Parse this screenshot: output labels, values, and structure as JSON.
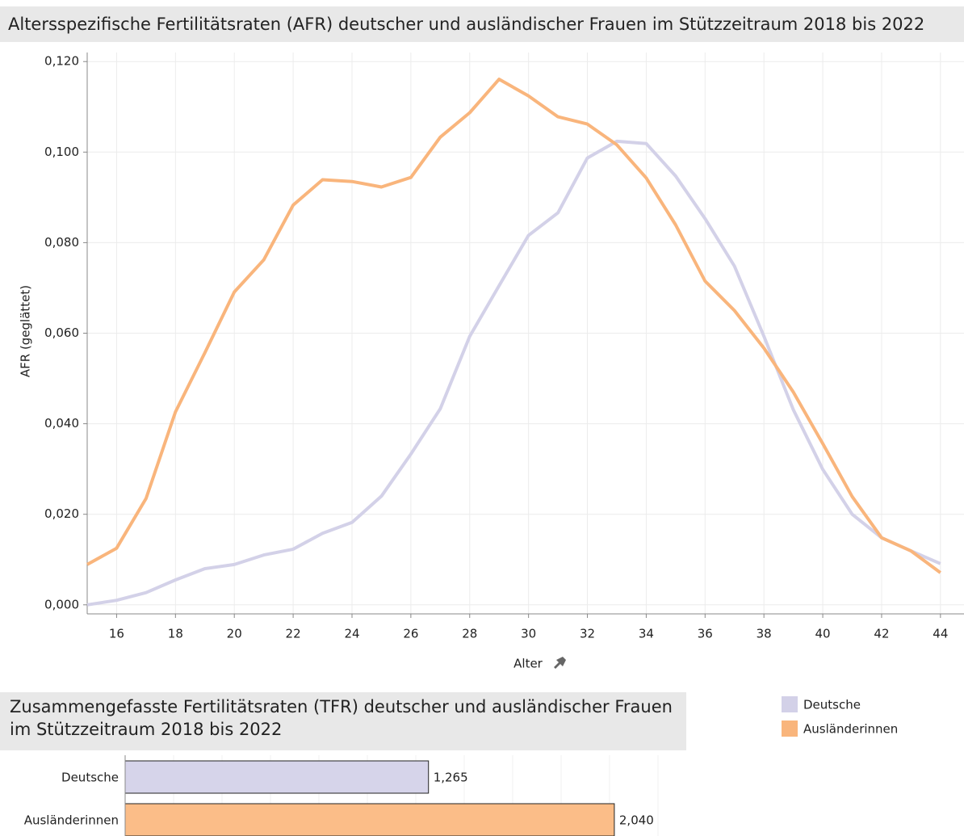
{
  "chart_data": [
    {
      "type": "line",
      "title": "Altersspezifische Fertilitätsraten (AFR) deutscher und ausländischer Frauen im Stützzeitraum 2018 bis 2022",
      "xlabel": "Alter",
      "ylabel": "AFR (geglättet)",
      "x": [
        15,
        16,
        17,
        18,
        19,
        20,
        21,
        22,
        23,
        24,
        25,
        26,
        27,
        28,
        29,
        30,
        31,
        32,
        33,
        34,
        35,
        36,
        37,
        38,
        39,
        40,
        41,
        42,
        43,
        44
      ],
      "series": [
        {
          "name": "Deutsche",
          "color": "#d3d1e8",
          "values": [
            0.0,
            0.001,
            0.0027,
            0.0055,
            0.008,
            0.0089,
            0.011,
            0.0123,
            0.0158,
            0.0182,
            0.024,
            0.0333,
            0.0433,
            0.0593,
            0.0705,
            0.0816,
            0.0866,
            0.0987,
            0.1024,
            0.1019,
            0.0947,
            0.0853,
            0.0748,
            0.0593,
            0.0431,
            0.0299,
            0.02,
            0.0148,
            0.0119,
            0.0091
          ]
        },
        {
          "name": "Ausländerinnen",
          "color": "#f9b57c",
          "values": [
            0.0089,
            0.0125,
            0.0235,
            0.0426,
            0.0557,
            0.0691,
            0.0762,
            0.0883,
            0.0939,
            0.0935,
            0.0923,
            0.0944,
            0.1033,
            0.1087,
            0.1161,
            0.1124,
            0.1078,
            0.1062,
            0.1016,
            0.0943,
            0.0839,
            0.0715,
            0.065,
            0.0567,
            0.047,
            0.0356,
            0.0239,
            0.0148,
            0.0119,
            0.0071
          ]
        }
      ],
      "xlim": [
        15,
        44.8
      ],
      "xticks": [
        16,
        18,
        20,
        22,
        24,
        26,
        28,
        30,
        32,
        34,
        36,
        38,
        40,
        42,
        44
      ],
      "ylim": [
        -0.002,
        0.122
      ],
      "yticks": [
        {
          "value": 0,
          "label": "0,000"
        },
        {
          "value": 0.02,
          "label": "0,020"
        },
        {
          "value": 0.04,
          "label": "0,040"
        },
        {
          "value": 0.06,
          "label": "0,060"
        },
        {
          "value": 0.08,
          "label": "0,080"
        },
        {
          "value": 0.1,
          "label": "0,100"
        },
        {
          "value": 0.12,
          "label": "0,120"
        }
      ],
      "grid": true
    },
    {
      "type": "barh",
      "title": "Zusammengefasste Fertilitätsraten (TFR) deutscher und ausländischer Frauen im Stützzeitraum 2018 bis 2022",
      "categories": [
        "Deutsche",
        "Ausländerinnen"
      ],
      "values": [
        1.265,
        2.04
      ],
      "value_labels": [
        "1,265",
        "2,040"
      ],
      "colors": [
        "#d6d4ea",
        "#fbbd88"
      ],
      "xlim": [
        0,
        2.34
      ]
    }
  ]
}
